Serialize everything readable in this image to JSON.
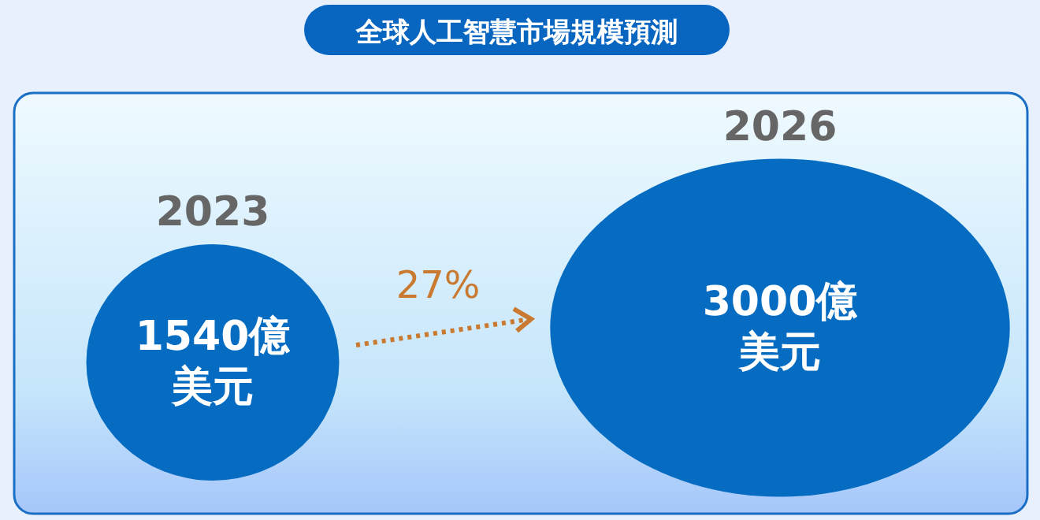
{
  "chart_data": {
    "type": "other",
    "title": "全球人工智慧市場規模預測",
    "categories": [
      "2023",
      "2026"
    ],
    "values": [
      1540,
      3000
    ],
    "value_labels": [
      "1540億美元",
      "3000億美元"
    ],
    "colors": [
      "#056cc2",
      "#056cc2"
    ],
    "annotations": [
      "27%"
    ]
  }
}
